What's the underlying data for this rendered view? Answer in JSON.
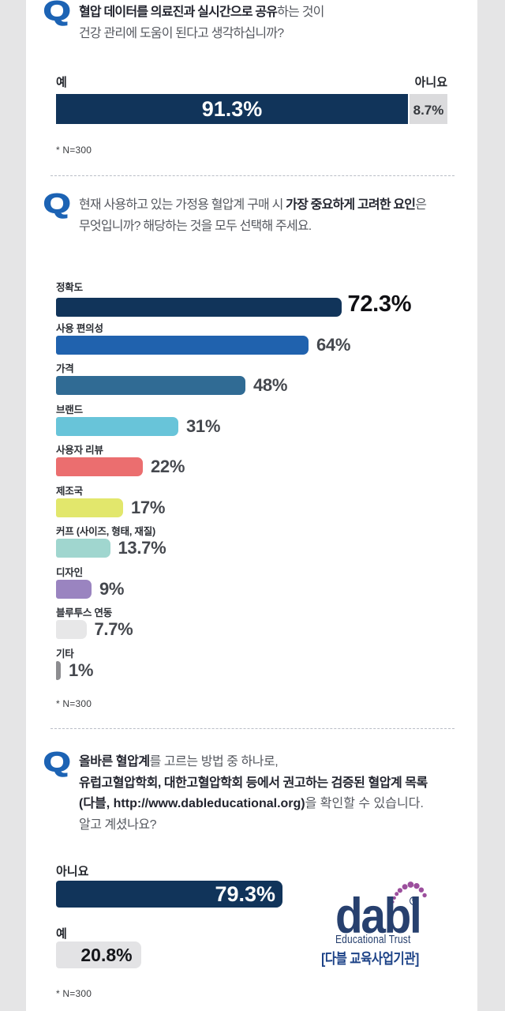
{
  "page": {
    "background": "#e5e5e6",
    "sheet_background": "#ffffff",
    "q_accent_blue": "#1c63b4",
    "navy": "#11345a",
    "sample_note": "* N=300"
  },
  "sections": {
    "q1": {
      "q_mark": "Q",
      "title_line1_bold": "혈압 데이터를 의료진과 실시간으로 공유",
      "title_line1_regular": "하는 것이",
      "title_line2": "건강 관리에 도움이 된다고 생각하십니까?",
      "yes_label": "예",
      "no_label": "아니요",
      "yes_value": "91.3%",
      "no_value": "8.7%",
      "note": "* N=300"
    },
    "q2": {
      "q_mark": "Q",
      "title_line1_regular": "현재 사용하고 있는 가정용 혈압계 구매 시 ",
      "title_line1_bold": "가장 중요하게 고려한 요인",
      "title_line1_tail": "은",
      "title_line2": "무엇입니까? 해당하는 것을 모두 선택해 주세요.",
      "bars": [
        {
          "label": "정확도",
          "value": 72.3,
          "display": "72.3%",
          "color": "#11345a"
        },
        {
          "label": "사용 편의성",
          "value": 64,
          "display": "64%",
          "color": "#2062ae"
        },
        {
          "label": "가격",
          "value": 48,
          "display": "48%",
          "color": "#306b94"
        },
        {
          "label": "브랜드",
          "value": 31,
          "display": "31%",
          "color": "#68c4d9"
        },
        {
          "label": "사용자 리뷰",
          "value": 22,
          "display": "22%",
          "color": "#eb6e6f"
        },
        {
          "label": "제조국",
          "value": 17,
          "display": "17%",
          "color": "#e2e76c"
        },
        {
          "label": "커프 (사이즈, 형태, 재질)",
          "value": 13.7,
          "display": "13.7%",
          "color": "#a0d6cf"
        },
        {
          "label": "디자인",
          "value": 9,
          "display": "9%",
          "color": "#9a84c0"
        },
        {
          "label": "블루투스 연동",
          "value": 7.7,
          "display": "7.7%",
          "color": "#e7e7e8"
        },
        {
          "label": "기타",
          "value": 1,
          "display": "1%",
          "color": "#8d8d90"
        }
      ],
      "note": "* N=300"
    },
    "q3": {
      "q_mark": "Q",
      "line1_bold": "올바른 혈압계",
      "line1_regular": "를 고르는 방법 중 하나로,",
      "line2_bold": "유럽고혈압학회, 대한고혈압학회 등에서 권고하는 검증된 혈압계 목록",
      "line3_bold": "(다블, http://www.dableducational.org)",
      "line3_regular": "을 확인할 수 있습니다.",
      "line4": "알고 계셨나요?",
      "no_label": "아니요",
      "no_value": "79.3%",
      "yes_label": "예",
      "yes_value": "20.8%",
      "note": "* N=300",
      "logo": {
        "wordmark": "dabl",
        "registered": "R",
        "subtitle": "Educational Trust",
        "caption": "[다블 교육사업기관]",
        "navy": "#27406e",
        "purple": "#9c4f9d",
        "caption_color": "#1c4287"
      }
    }
  },
  "chart_data": [
    {
      "type": "bar",
      "orientation": "horizontal-stacked",
      "title": "혈압 데이터를 의료진과 실시간으로 공유하는 것이 건강 관리에 도움이 된다고 생각하십니까?",
      "categories": [
        "예",
        "아니요"
      ],
      "values": [
        91.3,
        8.7
      ],
      "unit": "%",
      "note": "* N=300",
      "colors": [
        "#11345a",
        "#dbdbdd"
      ]
    },
    {
      "type": "bar",
      "orientation": "horizontal",
      "title": "현재 사용하고 있는 가정용 혈압계 구매 시 가장 중요하게 고려한 요인은 무엇입니까? 해당하는 것을 모두 선택해 주세요.",
      "categories": [
        "정확도",
        "사용 편의성",
        "가격",
        "브랜드",
        "사용자 리뷰",
        "제조국",
        "커프 (사이즈, 형태, 재질)",
        "디자인",
        "블루투스 연동",
        "기타"
      ],
      "values": [
        72.3,
        64,
        48,
        31,
        22,
        17,
        13.7,
        9,
        7.7,
        1
      ],
      "unit": "%",
      "note": "* N=300",
      "colors": [
        "#11345a",
        "#2062ae",
        "#306b94",
        "#68c4d9",
        "#eb6e6f",
        "#e2e76c",
        "#a0d6cf",
        "#9a84c0",
        "#e7e7e8",
        "#8d8d90"
      ],
      "xlim": [
        0,
        100
      ]
    },
    {
      "type": "bar",
      "orientation": "horizontal",
      "title": "올바른 혈압계를 고르는 방법 중 하나로, 유럽고혈압학회, 대한고혈압학회 등에서 권고하는 검증된 혈압계 목록 (다블, http://www.dableducational.org)을 확인할 수 있습니다. 알고 계셨나요?",
      "categories": [
        "아니요",
        "예"
      ],
      "values": [
        79.3,
        20.8
      ],
      "unit": "%",
      "note": "* N=300",
      "colors": [
        "#11345a",
        "#e3e3e5"
      ]
    }
  ]
}
